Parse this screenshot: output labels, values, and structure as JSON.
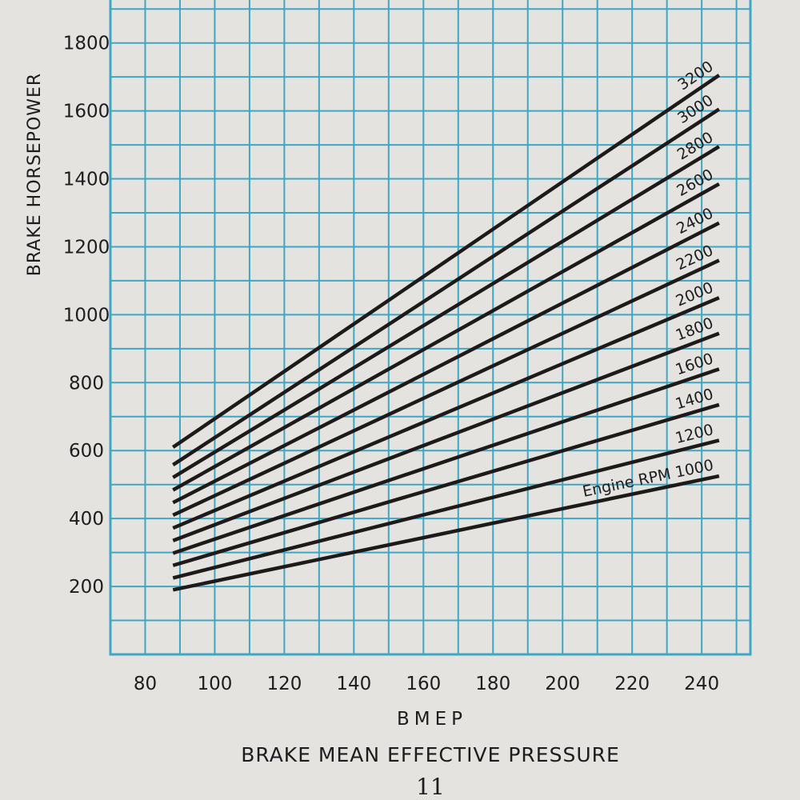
{
  "chart_data": {
    "type": "line",
    "xlabel": "BMEP",
    "subtitle": "BRAKE MEAN EFFECTIVE PRESSURE",
    "ylabel": "BRAKE HORSEPOWER",
    "xlim": [
      70,
      254
    ],
    "ylim": [
      0,
      1950
    ],
    "x_ticks": [
      80,
      100,
      120,
      140,
      160,
      180,
      200,
      220,
      240
    ],
    "y_ticks": [
      200,
      400,
      600,
      800,
      1000,
      1200,
      1400,
      1600,
      1800
    ],
    "grid": true,
    "grid_color": "#3fa6c3",
    "line_color": "#1e1a1a",
    "series": [
      {
        "name": "Engine RPM 1000",
        "x": [
          88,
          245
        ],
        "y": [
          190,
          525
        ]
      },
      {
        "name": "1200",
        "x": [
          88,
          245
        ],
        "y": [
          225,
          630
        ]
      },
      {
        "name": "1400",
        "x": [
          88,
          245
        ],
        "y": [
          262,
          735
        ]
      },
      {
        "name": "1600",
        "x": [
          88,
          245
        ],
        "y": [
          298,
          840
        ]
      },
      {
        "name": "1800",
        "x": [
          88,
          245
        ],
        "y": [
          335,
          945
        ]
      },
      {
        "name": "2000",
        "x": [
          88,
          245
        ],
        "y": [
          372,
          1050
        ]
      },
      {
        "name": "2200",
        "x": [
          88,
          245
        ],
        "y": [
          410,
          1160
        ]
      },
      {
        "name": "2400",
        "x": [
          88,
          245
        ],
        "y": [
          447,
          1270
        ]
      },
      {
        "name": "2600",
        "x": [
          88,
          245
        ],
        "y": [
          484,
          1385
        ]
      },
      {
        "name": "2800",
        "x": [
          88,
          245
        ],
        "y": [
          521,
          1495
        ]
      },
      {
        "name": "3000",
        "x": [
          88,
          245
        ],
        "y": [
          558,
          1605
        ]
      },
      {
        "name": "3200",
        "x": [
          88,
          245
        ],
        "y": [
          610,
          1705
        ]
      }
    ]
  },
  "page": {
    "number": "11"
  }
}
